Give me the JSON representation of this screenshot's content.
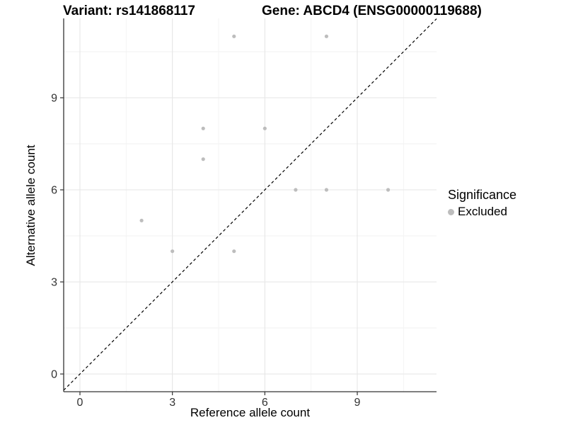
{
  "header": {
    "title_left": "Variant: rs141868117",
    "title_right": "Gene: ABCD4 (ENSG00000119688)"
  },
  "chart_data": {
    "type": "scatter",
    "title_left": "Variant: rs141868117",
    "title_right": "Gene: ABCD4 (ENSG00000119688)",
    "xlabel": "Reference allele count",
    "ylabel": "Alternative allele count",
    "xlim": [
      -0.55,
      11.55
    ],
    "ylim": [
      -0.55,
      11.55
    ],
    "x_ticks": [
      0,
      3,
      6,
      9
    ],
    "y_ticks": [
      0,
      3,
      6,
      9
    ],
    "x_minor": [
      1.5,
      4.5,
      7.5,
      10.5
    ],
    "y_minor": [
      1.5,
      4.5,
      7.5,
      10.5
    ],
    "grid": true,
    "identity_line": {
      "equation": "y = x",
      "style": "dashed",
      "color": "#000000"
    },
    "series": [
      {
        "name": "Excluded",
        "color": "#bdbdbd",
        "points": [
          [
            2,
            5
          ],
          [
            3,
            4
          ],
          [
            4,
            7
          ],
          [
            4,
            8
          ],
          [
            5,
            4
          ],
          [
            5,
            11
          ],
          [
            6,
            8
          ],
          [
            7,
            6
          ],
          [
            8,
            6
          ],
          [
            8,
            11
          ],
          [
            10,
            6
          ]
        ]
      }
    ],
    "legend": {
      "title": "Significance",
      "position": "right",
      "entries": [
        {
          "label": "Excluded",
          "color": "#bdbdbd"
        }
      ]
    }
  },
  "colors": {
    "point": "#bdbdbd",
    "grid_major": "#e6e6e6",
    "grid_minor": "#f2f2f2",
    "axis_line": "#333333",
    "tick_label": "#333333",
    "background": "#ffffff"
  }
}
